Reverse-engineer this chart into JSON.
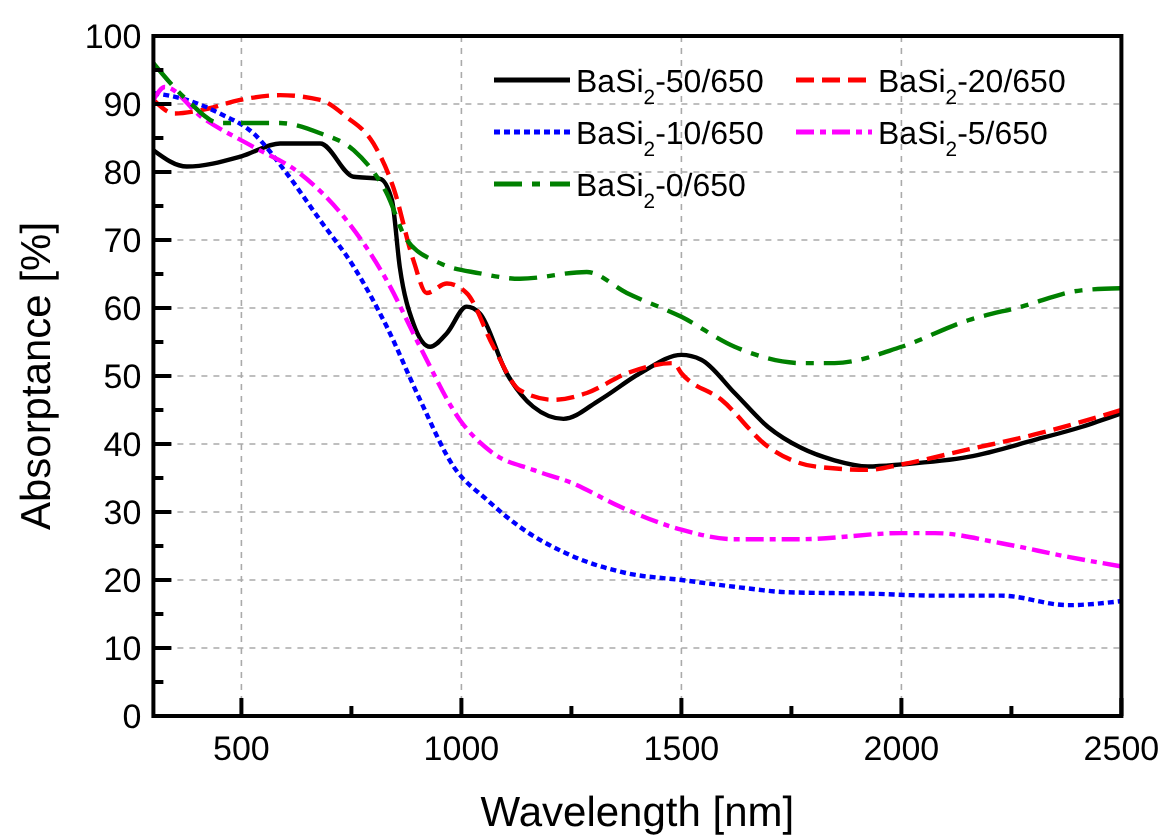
{
  "chart_data": {
    "type": "line",
    "xlabel": "Wavelength [nm]",
    "ylabel": "Absorptance [%]",
    "xlim": [
      300,
      2500
    ],
    "ylim": [
      0,
      100
    ],
    "xticks": [
      500,
      {
        "value": 750,
        "label": null
      },
      1000,
      {
        "value": 1250,
        "label": null
      },
      1500,
      {
        "value": 1750,
        "label": null
      },
      2000,
      {
        "value": 2250,
        "label": null
      },
      2500
    ],
    "yticks": [
      0,
      {
        "value": 5,
        "label": null
      },
      10,
      {
        "value": 15,
        "label": null
      },
      20,
      {
        "value": 25,
        "label": null
      },
      30,
      {
        "value": 35,
        "label": null
      },
      40,
      {
        "value": 45,
        "label": null
      },
      50,
      {
        "value": 55,
        "label": null
      },
      60,
      {
        "value": 65,
        "label": null
      },
      70,
      {
        "value": 75,
        "label": null
      },
      80,
      {
        "value": 85,
        "label": null
      },
      90,
      {
        "value": 95,
        "label": null
      },
      100
    ],
    "grid": true,
    "legend": "top right",
    "series": [
      {
        "name": "BaSi$_{2}$-50/650",
        "color": "#000000",
        "line_style": "solid",
        "x": [
          300,
          376,
          500,
          588,
          679,
          755,
          815,
          842,
          860,
          891,
          929,
          967,
          1012,
          1042,
          1103,
          1163,
          1232,
          1315,
          1406,
          1500,
          1545,
          1621,
          1697,
          1773,
          1848,
          1924,
          2000,
          2152,
          2303,
          2409,
          2500
        ],
        "values": [
          83.2,
          80.8,
          82.3,
          84.2,
          84.2,
          79.3,
          79,
          75.9,
          66,
          57.7,
          54.3,
          56.3,
          60.2,
          59.2,
          50.4,
          45.5,
          43.7,
          46.5,
          50.4,
          53.1,
          52.4,
          47.5,
          42.5,
          39.4,
          37.6,
          36.7,
          37,
          38.1,
          40.6,
          42.5,
          44.5
        ]
      },
      {
        "name": "BaSi$_{2}$-20/650",
        "color": "#ff0000",
        "line_style": "dashed",
        "x": [
          300,
          348,
          409,
          497,
          588,
          679,
          739,
          800,
          845,
          891,
          921,
          967,
          1012,
          1073,
          1133,
          1209,
          1285,
          1376,
          1482,
          1500,
          1591,
          1697,
          1803,
          1924,
          2000,
          2152,
          2303,
          2500
        ],
        "values": [
          90.6,
          88.6,
          89.1,
          90.6,
          91.3,
          90.6,
          88.1,
          84.2,
          77.8,
          67,
          62.2,
          63.6,
          62.2,
          54.3,
          47.9,
          46.5,
          47.5,
          50.4,
          51.9,
          50.4,
          46.5,
          39.6,
          36.7,
          36.2,
          37,
          39.2,
          41.4,
          45
        ]
      },
      {
        "name": "BaSi$_{2}$-10/650",
        "color": "#0000ff",
        "line_style": "dotted",
        "x": [
          300,
          376,
          451,
          527,
          603,
          679,
          755,
          830,
          906,
          982,
          1058,
          1133,
          1239,
          1376,
          1500,
          1621,
          1742,
          1924,
          2076,
          2227,
          2379,
          2500
        ],
        "values": [
          91.6,
          90.6,
          88.6,
          85.7,
          79.8,
          72.9,
          66.1,
          57.3,
          46.5,
          36.7,
          31.8,
          27.8,
          23.9,
          21,
          20,
          19,
          18.2,
          18,
          17.7,
          17.7,
          16.3,
          16.9
        ]
      },
      {
        "name": "BaSi$_{2}$-5/650",
        "color": "#ff00ff",
        "line_style": "dashdot",
        "x": [
          300,
          326,
          409,
          527,
          633,
          739,
          830,
          906,
          997,
          1073,
          1163,
          1254,
          1360,
          1500,
          1621,
          1773,
          2000,
          2076,
          2227,
          2379,
          2500
        ],
        "values": [
          90.6,
          92.5,
          88.1,
          83.7,
          79.8,
          72.9,
          64.1,
          54.3,
          43.5,
          38.6,
          36.2,
          34.2,
          30.8,
          27.4,
          26,
          26,
          26.9,
          26.9,
          25.4,
          23.4,
          22
        ]
      },
      {
        "name": "BaSi$_{2}$-0/650",
        "color": "#008000",
        "line_style": "longdashdot",
        "x": [
          300,
          376,
          451,
          588,
          679,
          755,
          830,
          876,
          951,
          1042,
          1133,
          1285,
          1376,
          1500,
          1621,
          1773,
          1848,
          2000,
          2152,
          2273,
          2409,
          2500
        ],
        "values": [
          96,
          90.6,
          87.2,
          87.2,
          85.7,
          83.2,
          76.9,
          70,
          66.6,
          65.1,
          64.3,
          65.3,
          62.2,
          58.7,
          54.3,
          51.9,
          51.9,
          54.3,
          58.2,
          60.2,
          62.6,
          62.9
        ]
      }
    ]
  }
}
